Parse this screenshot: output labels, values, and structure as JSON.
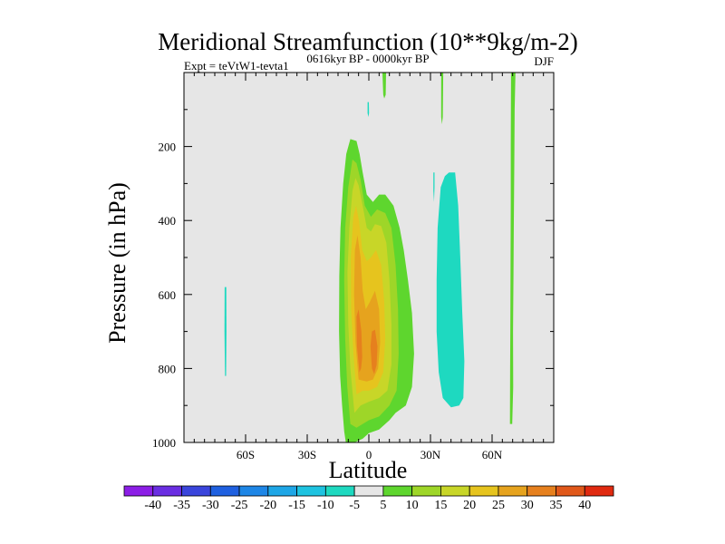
{
  "chart_data": {
    "type": "contour",
    "title": "Meridional Streamfunction (10**9kg/m-2)",
    "left_subtitle": "Expt = teVtW1-tevta1",
    "center_subtitle": "0616kyr BP - 0000kyr BP",
    "right_subtitle": "DJF",
    "xlabel": "Latitude",
    "ylabel": "Pressure (in hPa)",
    "xlim": [
      -90,
      90
    ],
    "ylim": [
      0,
      1000
    ],
    "y_inverted": true,
    "x_ticks": [
      {
        "value": -60,
        "label": "60S"
      },
      {
        "value": -30,
        "label": "30S"
      },
      {
        "value": 0,
        "label": "0"
      },
      {
        "value": 30,
        "label": "30N"
      },
      {
        "value": 60,
        "label": "60N"
      }
    ],
    "y_ticks": [
      {
        "value": 200,
        "label": "200"
      },
      {
        "value": 400,
        "label": "400"
      },
      {
        "value": 600,
        "label": "600"
      },
      {
        "value": 800,
        "label": "800"
      },
      {
        "value": 1000,
        "label": "1000"
      }
    ],
    "background_color": "#e6e6e6",
    "colorbar": {
      "levels": [
        -40,
        -35,
        -30,
        -25,
        -20,
        -15,
        -10,
        -5,
        5,
        10,
        15,
        20,
        25,
        30,
        35,
        40
      ],
      "labels": [
        "-40",
        "-35",
        "-30",
        "-25",
        "-20",
        "-15",
        "-10",
        "-5",
        "5",
        "10",
        "15",
        "20",
        "25",
        "30",
        "35",
        "40"
      ],
      "colors": [
        "#8c1ee6",
        "#6a2ee2",
        "#3a45dc",
        "#1f60e0",
        "#1e86e6",
        "#1ea6e6",
        "#1ec3e0",
        "#1ed9c0",
        "#e6e6e6",
        "#5ed62e",
        "#9ed628",
        "#c8d628",
        "#e6c41e",
        "#e6a31e",
        "#e6801e",
        "#e0581a",
        "#e02a10"
      ]
    },
    "regions": [
      {
        "fill": "#5ed62e",
        "points": [
          [
            -11.2,
            1000
          ],
          [
            -12,
            970
          ],
          [
            -13,
            900
          ],
          [
            -14,
            820
          ],
          [
            -14.5,
            700
          ],
          [
            -14.4,
            550
          ],
          [
            -13.8,
            420
          ],
          [
            -12.5,
            300
          ],
          [
            -11,
            220
          ],
          [
            -9,
            180
          ],
          [
            -6,
            185
          ],
          [
            -4.5,
            220
          ],
          [
            -3,
            270
          ],
          [
            -1,
            330
          ],
          [
            2,
            350
          ],
          [
            5,
            330
          ],
          [
            8,
            330
          ],
          [
            12,
            360
          ],
          [
            15,
            420
          ],
          [
            17,
            480
          ],
          [
            19,
            560
          ],
          [
            21,
            650
          ],
          [
            22,
            760
          ],
          [
            21,
            850
          ],
          [
            18,
            900
          ],
          [
            13,
            920
          ],
          [
            10,
            940
          ],
          [
            5,
            965
          ],
          [
            0,
            975
          ],
          [
            -3,
            990
          ],
          [
            -7,
            1000
          ]
        ]
      },
      {
        "fill": "#9ed628",
        "points": [
          [
            -9,
            950
          ],
          [
            -10.5,
            850
          ],
          [
            -11.5,
            720
          ],
          [
            -12,
            560
          ],
          [
            -11.5,
            420
          ],
          [
            -10,
            310
          ],
          [
            -8,
            235
          ],
          [
            -6,
            245
          ],
          [
            -4,
            290
          ],
          [
            -2,
            360
          ],
          [
            1,
            390
          ],
          [
            4,
            370
          ],
          [
            8,
            380
          ],
          [
            11,
            420
          ],
          [
            13,
            520
          ],
          [
            14.2,
            640
          ],
          [
            14.5,
            760
          ],
          [
            13.5,
            860
          ],
          [
            10,
            900
          ],
          [
            5,
            930
          ],
          [
            0,
            940
          ],
          [
            -3,
            950
          ],
          [
            -6,
            960
          ]
        ]
      },
      {
        "fill": "#c8d628",
        "points": [
          [
            -7,
            920
          ],
          [
            -9,
            800
          ],
          [
            -10,
            680
          ],
          [
            -10.4,
            540
          ],
          [
            -9.5,
            420
          ],
          [
            -8,
            320
          ],
          [
            -6.5,
            285
          ],
          [
            -5,
            305
          ],
          [
            -3,
            360
          ],
          [
            -1,
            420
          ],
          [
            1,
            430
          ],
          [
            3,
            410
          ],
          [
            6,
            415
          ],
          [
            8.5,
            460
          ],
          [
            10,
            560
          ],
          [
            11,
            680
          ],
          [
            11,
            790
          ],
          [
            9,
            860
          ],
          [
            5,
            880
          ],
          [
            0,
            890
          ],
          [
            -4,
            900
          ]
        ]
      },
      {
        "fill": "#e6c41e",
        "points": [
          [
            -6,
            870
          ],
          [
            -7.5,
            760
          ],
          [
            -8.6,
            640
          ],
          [
            -8.8,
            500
          ],
          [
            -7.6,
            390
          ],
          [
            -6.2,
            360
          ],
          [
            -4.8,
            400
          ],
          [
            -3.2,
            480
          ],
          [
            -1,
            510
          ],
          [
            1,
            500
          ],
          [
            3.5,
            480
          ],
          [
            6,
            520
          ],
          [
            7.5,
            620
          ],
          [
            8,
            720
          ],
          [
            7,
            810
          ],
          [
            4,
            850
          ],
          [
            0,
            860
          ],
          [
            -3,
            860
          ]
        ]
      },
      {
        "fill": "#e6a31e",
        "points": [
          [
            -5,
            830
          ],
          [
            -6.5,
            730
          ],
          [
            -7.2,
            600
          ],
          [
            -6.8,
            480
          ],
          [
            -5.5,
            440
          ],
          [
            -4,
            500
          ],
          [
            -3,
            590
          ],
          [
            -1.5,
            640
          ],
          [
            0.5,
            620
          ],
          [
            3,
            590
          ],
          [
            5,
            640
          ],
          [
            5.5,
            730
          ],
          [
            4.5,
            800
          ],
          [
            2,
            830
          ],
          [
            -1,
            835
          ]
        ]
      },
      {
        "fill": "#e6801e",
        "points": [
          [
            -4.6,
            810
          ],
          [
            -5.8,
            740
          ],
          [
            -6,
            660
          ],
          [
            -5,
            640
          ],
          [
            -3.6,
            700
          ],
          [
            -3.2,
            770
          ],
          [
            -3.8,
            800
          ]
        ]
      },
      {
        "fill": "#e6801e",
        "points": [
          [
            1.5,
            800
          ],
          [
            0.8,
            740
          ],
          [
            1.5,
            700
          ],
          [
            3,
            695
          ],
          [
            4.2,
            740
          ],
          [
            3.8,
            790
          ],
          [
            2.6,
            815
          ]
        ]
      },
      {
        "fill": "#1ed9c0",
        "points": [
          [
            39,
            270
          ],
          [
            42,
            270
          ],
          [
            43.5,
            360
          ],
          [
            44.5,
            500
          ],
          [
            45.5,
            650
          ],
          [
            46.5,
            780
          ],
          [
            46,
            880
          ],
          [
            44,
            900
          ],
          [
            40,
            905
          ],
          [
            36,
            880
          ],
          [
            34,
            810
          ],
          [
            33,
            700
          ],
          [
            33,
            560
          ],
          [
            33.5,
            420
          ],
          [
            35,
            310
          ],
          [
            37,
            280
          ]
        ]
      },
      {
        "fill": "#5ed62e",
        "points": [
          [
            69.2,
            0
          ],
          [
            71.4,
            0
          ],
          [
            71,
            100
          ],
          [
            70.8,
            250
          ],
          [
            70.6,
            400
          ],
          [
            70.4,
            550
          ],
          [
            70.2,
            700
          ],
          [
            70.3,
            850
          ],
          [
            69.8,
            950
          ],
          [
            68.7,
            950
          ],
          [
            68.8,
            800
          ],
          [
            68.9,
            650
          ],
          [
            69,
            500
          ],
          [
            69.1,
            350
          ],
          [
            69.1,
            200
          ]
        ]
      },
      {
        "fill": "#5ed62e",
        "points": [
          [
            6.6,
            0
          ],
          [
            8.4,
            0
          ],
          [
            8.2,
            60
          ],
          [
            7.5,
            70
          ],
          [
            7,
            60
          ]
        ]
      },
      {
        "fill": "#5ed62e",
        "points": [
          [
            35.2,
            0
          ],
          [
            36.2,
            0
          ],
          [
            36,
            120
          ],
          [
            35.6,
            140
          ],
          [
            35.2,
            120
          ]
        ]
      },
      {
        "fill": "#1ed9c0",
        "points": [
          [
            -70.2,
            580
          ],
          [
            -69.4,
            580
          ],
          [
            -69.3,
            700
          ],
          [
            -69.5,
            820
          ],
          [
            -70,
            820
          ],
          [
            -70.3,
            700
          ]
        ]
      },
      {
        "fill": "#1ed9c0",
        "points": [
          [
            -0.6,
            80
          ],
          [
            0,
            80
          ],
          [
            0.1,
            110
          ],
          [
            -0.2,
            120
          ],
          [
            -0.6,
            110
          ]
        ]
      },
      {
        "fill": "#1ed9c0",
        "points": [
          [
            31.4,
            270
          ],
          [
            32,
            270
          ],
          [
            32,
            310
          ],
          [
            31.7,
            350
          ],
          [
            31.4,
            320
          ]
        ]
      }
    ]
  }
}
